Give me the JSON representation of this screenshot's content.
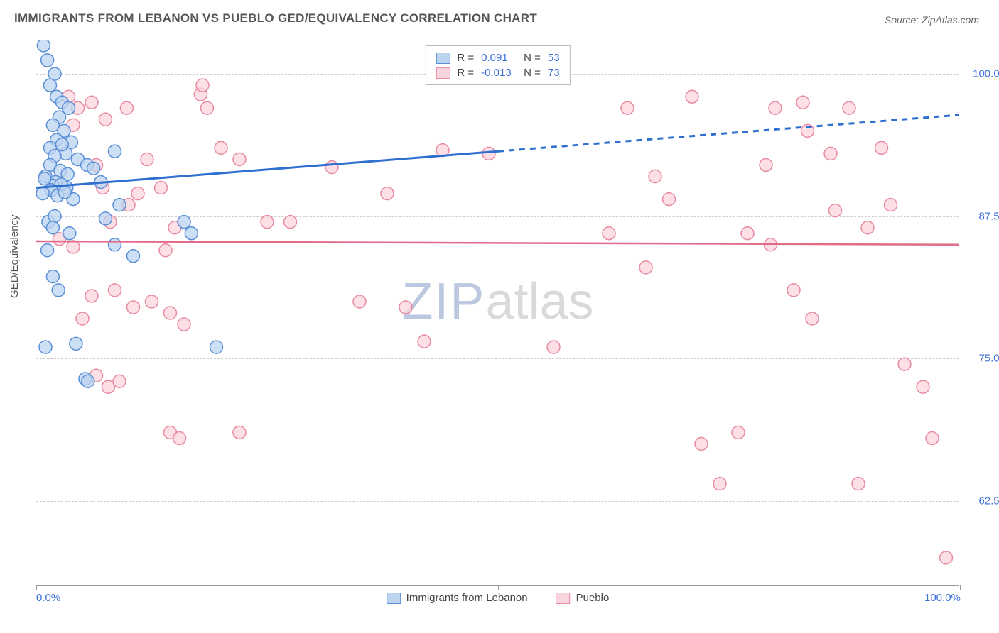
{
  "title": "IMMIGRANTS FROM LEBANON VS PUEBLO GED/EQUIVALENCY CORRELATION CHART",
  "source_label": "Source:",
  "source_value": "ZipAtlas.com",
  "y_axis_label": "GED/Equivalency",
  "watermark": {
    "part1": "ZIP",
    "part2": "atlas"
  },
  "chart": {
    "type": "scatter",
    "x_domain": [
      0,
      100
    ],
    "y_domain": [
      55,
      103
    ],
    "x_ticks": [
      {
        "value": 0,
        "label": "0.0%"
      },
      {
        "value": 50,
        "label": ""
      },
      {
        "value": 100,
        "label": "100.0%"
      }
    ],
    "y_ticks": [
      {
        "value": 62.5,
        "label": "62.5%"
      },
      {
        "value": 75.0,
        "label": "75.0%"
      },
      {
        "value": 87.5,
        "label": "87.5%"
      },
      {
        "value": 100.0,
        "label": "100.0%"
      }
    ],
    "grid_color": "#cccccc",
    "background_color": "#ffffff",
    "series": [
      {
        "id": "lebanon",
        "label": "Immigrants from Lebanon",
        "marker_fill": "#bcd4f0",
        "marker_stroke": "#5a8fd6",
        "marker_radius": 9,
        "line_color": "#2f6fd0",
        "line_width": 3,
        "trend_solid": {
          "x1": 0,
          "y1": 90.0,
          "x2": 50,
          "y2": 93.2
        },
        "trend_dashed": {
          "x1": 50,
          "y1": 93.2,
          "x2": 100,
          "y2": 96.4
        },
        "r_value": "0.091",
        "n_value": "53",
        "points": [
          [
            0.8,
            102.5
          ],
          [
            1.2,
            101.2
          ],
          [
            2.0,
            100.0
          ],
          [
            1.5,
            99.0
          ],
          [
            2.2,
            98.0
          ],
          [
            2.8,
            97.5
          ],
          [
            3.5,
            97.0
          ],
          [
            2.5,
            96.2
          ],
          [
            1.8,
            95.5
          ],
          [
            3.0,
            95.0
          ],
          [
            2.2,
            94.2
          ],
          [
            3.8,
            94.0
          ],
          [
            1.5,
            93.5
          ],
          [
            3.2,
            93.0
          ],
          [
            2.8,
            93.8
          ],
          [
            2.0,
            92.8
          ],
          [
            4.5,
            92.5
          ],
          [
            5.5,
            92.0
          ],
          [
            1.5,
            92.0
          ],
          [
            2.6,
            91.5
          ],
          [
            1.0,
            91.0
          ],
          [
            3.4,
            91.2
          ],
          [
            2.1,
            90.5
          ],
          [
            1.8,
            90.2
          ],
          [
            0.9,
            90.8
          ],
          [
            3.3,
            90.0
          ],
          [
            2.7,
            90.3
          ],
          [
            1.6,
            89.8
          ],
          [
            0.7,
            89.5
          ],
          [
            2.3,
            89.3
          ],
          [
            4.0,
            89.0
          ],
          [
            3.1,
            89.6
          ],
          [
            7.0,
            90.5
          ],
          [
            8.5,
            93.2
          ],
          [
            6.2,
            91.7
          ],
          [
            9.0,
            88.5
          ],
          [
            7.5,
            87.3
          ],
          [
            1.3,
            87.0
          ],
          [
            2.0,
            87.5
          ],
          [
            1.8,
            86.5
          ],
          [
            3.6,
            86.0
          ],
          [
            8.5,
            85.0
          ],
          [
            10.5,
            84.0
          ],
          [
            16.0,
            87.0
          ],
          [
            16.8,
            86.0
          ],
          [
            1.2,
            84.5
          ],
          [
            1.8,
            82.2
          ],
          [
            2.4,
            81.0
          ],
          [
            4.3,
            76.3
          ],
          [
            5.3,
            73.2
          ],
          [
            5.6,
            73.0
          ],
          [
            19.5,
            76.0
          ],
          [
            1.0,
            76.0
          ]
        ]
      },
      {
        "id": "pueblo",
        "label": "Pueblo",
        "marker_fill": "#fbd5de",
        "marker_stroke": "#e88aa0",
        "marker_radius": 9,
        "line_color": "#e26b8a",
        "line_width": 2.5,
        "trend_solid": {
          "x1": 0,
          "y1": 85.3,
          "x2": 100,
          "y2": 85.0
        },
        "trend_dashed": null,
        "r_value": "-0.013",
        "n_value": "73",
        "points": [
          [
            3.5,
            98.0
          ],
          [
            4.5,
            97.0
          ],
          [
            6.0,
            97.5
          ],
          [
            4.0,
            95.5
          ],
          [
            7.5,
            96.0
          ],
          [
            9.8,
            97.0
          ],
          [
            17.8,
            98.2
          ],
          [
            18.5,
            97.0
          ],
          [
            20.0,
            93.5
          ],
          [
            22.0,
            92.5
          ],
          [
            18.0,
            99.0
          ],
          [
            6.5,
            92.0
          ],
          [
            7.2,
            90.0
          ],
          [
            10.0,
            88.5
          ],
          [
            11.0,
            89.5
          ],
          [
            8.0,
            87.0
          ],
          [
            13.5,
            90.0
          ],
          [
            12.0,
            92.5
          ],
          [
            2.5,
            85.5
          ],
          [
            4.0,
            84.8
          ],
          [
            15.0,
            86.5
          ],
          [
            14.0,
            84.5
          ],
          [
            25.0,
            87.0
          ],
          [
            27.5,
            87.0
          ],
          [
            6.0,
            80.5
          ],
          [
            8.5,
            81.0
          ],
          [
            10.5,
            79.5
          ],
          [
            12.5,
            80.0
          ],
          [
            14.5,
            79.0
          ],
          [
            16.0,
            78.0
          ],
          [
            5.0,
            78.5
          ],
          [
            7.8,
            72.5
          ],
          [
            9.0,
            73.0
          ],
          [
            6.5,
            73.5
          ],
          [
            14.5,
            68.5
          ],
          [
            15.5,
            68.0
          ],
          [
            22.0,
            68.5
          ],
          [
            32.0,
            91.8
          ],
          [
            35.0,
            80.0
          ],
          [
            38.0,
            89.5
          ],
          [
            40.0,
            79.5
          ],
          [
            42.0,
            76.5
          ],
          [
            44.0,
            93.3
          ],
          [
            49.0,
            93.0
          ],
          [
            56.0,
            76.0
          ],
          [
            62.0,
            86.0
          ],
          [
            64.0,
            97.0
          ],
          [
            66.0,
            83.0
          ],
          [
            67.0,
            91.0
          ],
          [
            68.5,
            89.0
          ],
          [
            71.0,
            98.0
          ],
          [
            72.0,
            67.5
          ],
          [
            74.0,
            64.0
          ],
          [
            76.0,
            68.5
          ],
          [
            77.0,
            86.0
          ],
          [
            79.0,
            92.0
          ],
          [
            80.0,
            97.0
          ],
          [
            79.5,
            85.0
          ],
          [
            82.0,
            81.0
          ],
          [
            83.0,
            97.5
          ],
          [
            83.5,
            95.0
          ],
          [
            84.0,
            78.5
          ],
          [
            86.0,
            93.0
          ],
          [
            86.5,
            88.0
          ],
          [
            88.0,
            97.0
          ],
          [
            89.0,
            64.0
          ],
          [
            90.0,
            86.5
          ],
          [
            91.5,
            93.5
          ],
          [
            92.5,
            88.5
          ],
          [
            94.0,
            74.5
          ],
          [
            96.0,
            72.5
          ],
          [
            97.0,
            68.0
          ],
          [
            98.5,
            57.5
          ]
        ]
      }
    ]
  },
  "legend_top_label_r": "R =",
  "legend_top_label_n": "N ="
}
